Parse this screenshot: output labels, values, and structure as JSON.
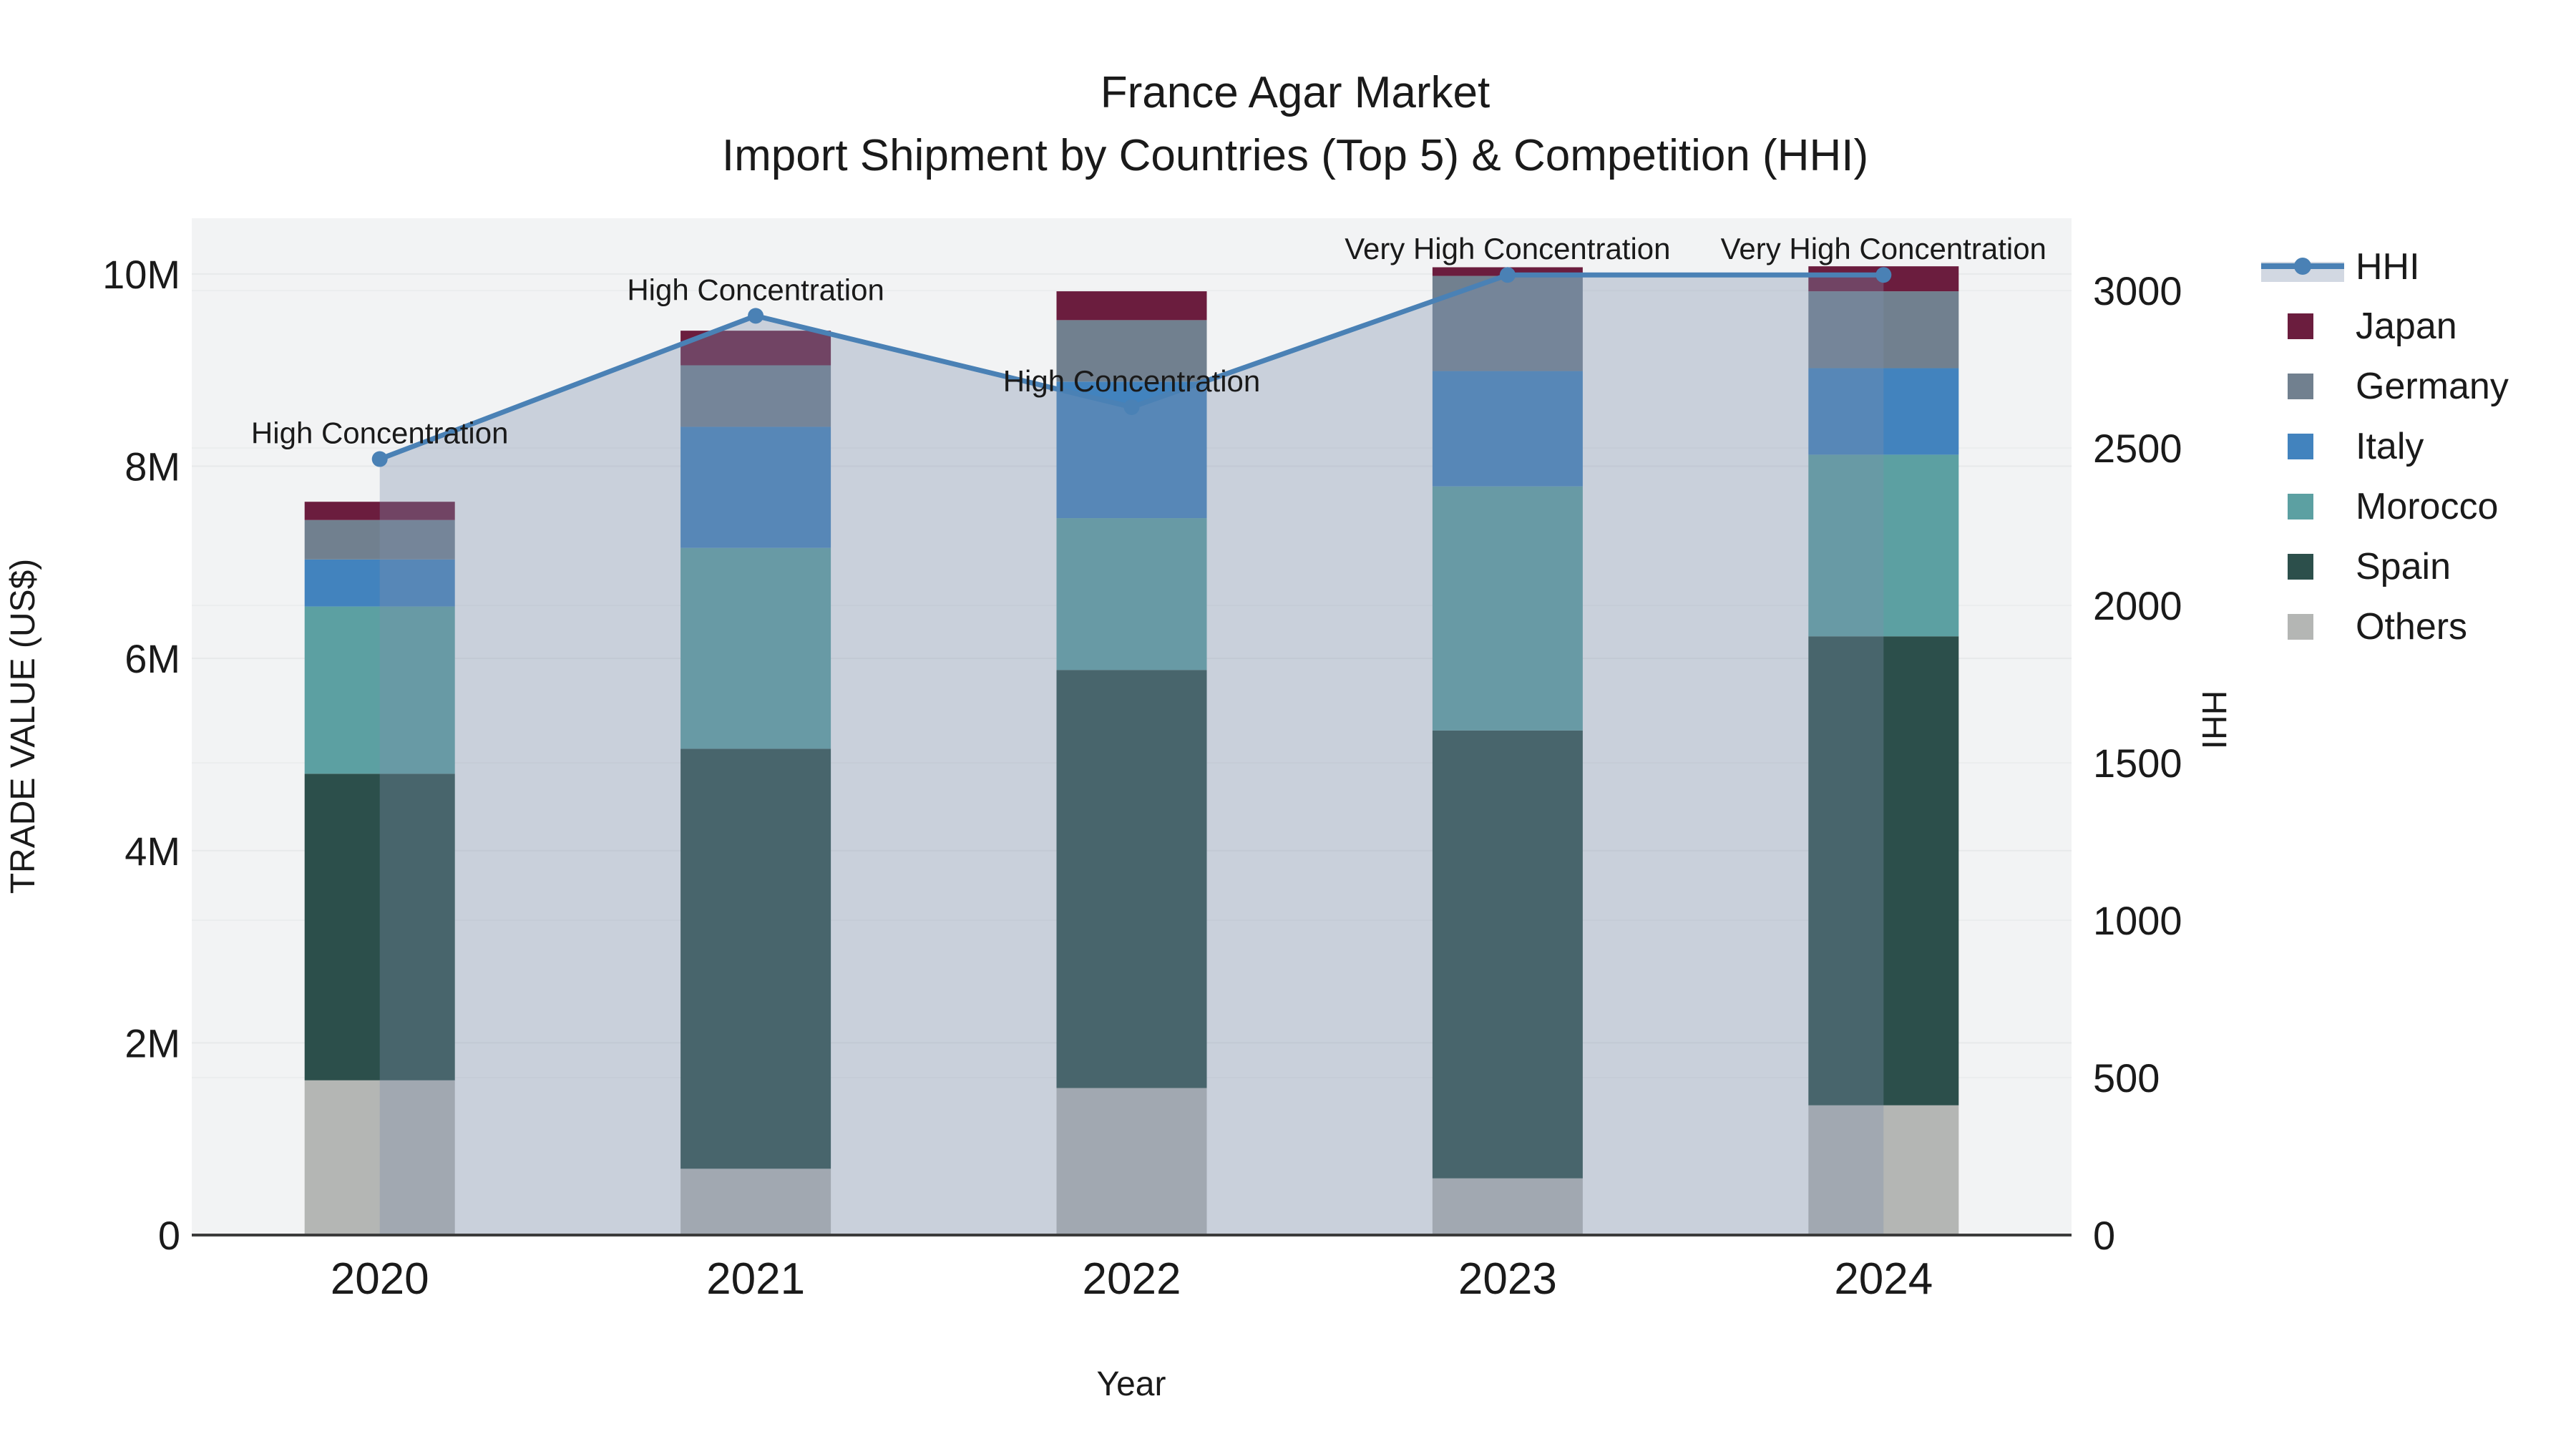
{
  "title": {
    "line1": "France Agar Market",
    "line2": "Import Shipment by Countries (Top 5) & Competition (HHI)"
  },
  "chart_data": {
    "type": "bar+line",
    "stacked": true,
    "categories": [
      "2020",
      "2021",
      "2022",
      "2023",
      "2024"
    ],
    "series": [
      {
        "name": "Others",
        "color": "#b4b6b4",
        "values_musd": [
          1.61,
          0.69,
          1.53,
          0.59,
          1.35
        ]
      },
      {
        "name": "Spain",
        "color": "#2c4f4b",
        "values_musd": [
          3.19,
          4.37,
          4.35,
          4.66,
          4.88
        ]
      },
      {
        "name": "Morocco",
        "color": "#5ca0a2",
        "values_musd": [
          1.74,
          2.09,
          1.58,
          2.54,
          1.89
        ]
      },
      {
        "name": "Italy",
        "color": "#4283be",
        "values_musd": [
          0.49,
          1.26,
          1.42,
          1.2,
          0.9
        ]
      },
      {
        "name": "Germany",
        "color": "#71808f",
        "values_musd": [
          0.41,
          0.64,
          0.64,
          0.99,
          0.8
        ]
      },
      {
        "name": "Japan",
        "color": "#6b1d3e",
        "values_musd": [
          0.19,
          0.36,
          0.3,
          0.09,
          0.26
        ]
      }
    ],
    "bar_totals_musd": [
      7.63,
      9.41,
      9.82,
      10.07,
      10.08
    ],
    "line_series": {
      "name": "HHI",
      "color": "#4a81b5",
      "area_color": "rgba(125,144,172,0.35)",
      "values": [
        2465,
        2920,
        2630,
        3050,
        3050
      ],
      "axis": "right"
    },
    "annotations": [
      "High Concentration",
      "High Concentration",
      "High Concentration",
      "Very High Concentration",
      "Very High Concentration"
    ],
    "x_axis": {
      "label": "Year",
      "tick_labels": [
        "2020",
        "2021",
        "2022",
        "2023",
        "2024"
      ]
    },
    "y_axis_left": {
      "label": "TRADE VALUE (US$)",
      "tick_labels": [
        "0",
        "2M",
        "4M",
        "6M",
        "8M",
        "10M"
      ],
      "tick_values_musd": [
        0,
        2,
        4,
        6,
        8,
        10
      ],
      "range_musd": [
        0,
        10.58
      ]
    },
    "y_axis_right": {
      "label": "HHI",
      "tick_labels": [
        "0",
        "500",
        "1000",
        "1500",
        "2000",
        "2500",
        "3000"
      ],
      "tick_values": [
        0,
        500,
        1000,
        1500,
        2000,
        2500,
        3000
      ],
      "range": [
        0,
        3230
      ]
    },
    "legend": {
      "position": "right",
      "entries": [
        "HHI",
        "Japan",
        "Germany",
        "Italy",
        "Morocco",
        "Spain",
        "Others"
      ]
    },
    "grid": true,
    "plot_background": "#f2f3f4"
  }
}
